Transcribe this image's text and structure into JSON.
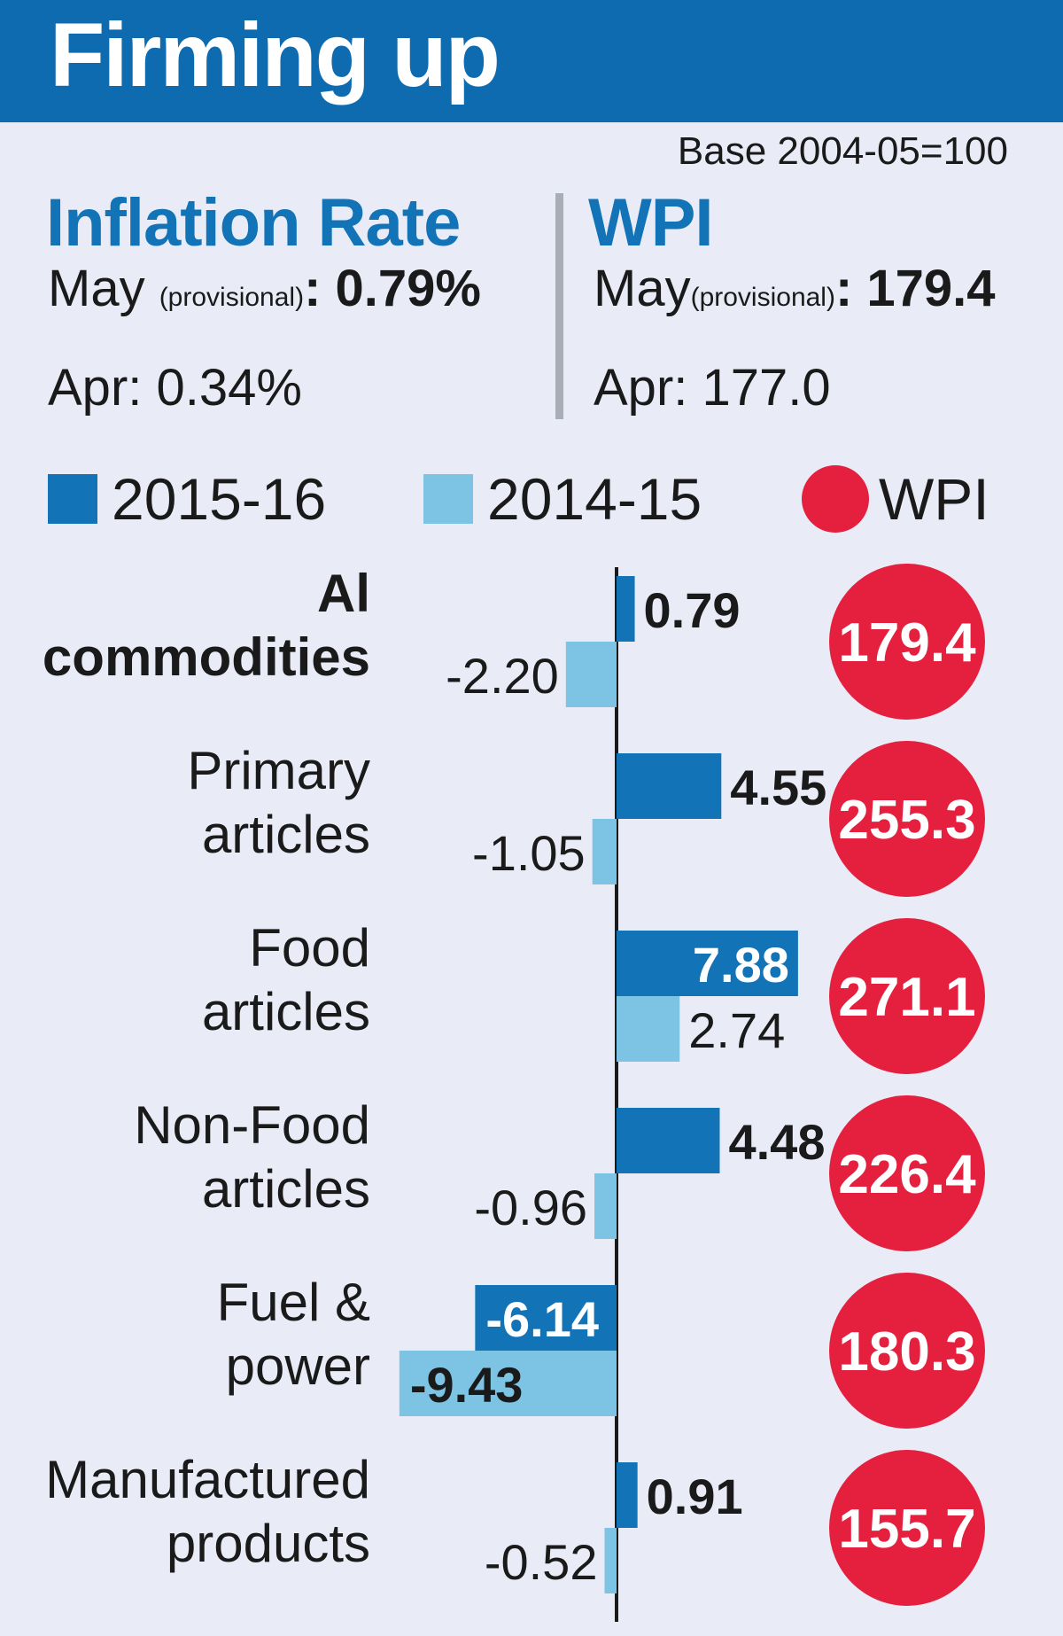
{
  "header": {
    "title": "Firming up"
  },
  "base_note": "Base 2004-05=100",
  "inflation": {
    "heading": "Inflation Rate",
    "may_label": "May ",
    "provisional": "(provisional)",
    "may_value": ": 0.79%",
    "apr_text": "Apr: 0.34%"
  },
  "wpi": {
    "heading": "WPI",
    "may_label": "May",
    "provisional": "(provisional)",
    "may_value": ": 179.4",
    "apr_text": "Apr: 177.0"
  },
  "legend": {
    "items": [
      {
        "label": "2015-16",
        "color": "#1273b7",
        "shape": "square"
      },
      {
        "label": "2014-15",
        "color": "#7dc3e4",
        "shape": "square"
      },
      {
        "label": "WPI",
        "color": "#e4203e",
        "shape": "circle"
      }
    ]
  },
  "colors": {
    "series_2015": "#1273b7",
    "series_2014": "#7dc3e4",
    "wpi": "#e4203e",
    "text": "#1a1a1a",
    "axis": "#1a1a1a"
  },
  "chart_data": {
    "type": "bar",
    "orientation": "horizontal",
    "categories": [
      [
        "Al",
        "commodities"
      ],
      [
        "Primary",
        "articles"
      ],
      [
        "Food",
        "articles"
      ],
      [
        "Non-Food",
        "articles"
      ],
      [
        "Fuel &",
        "power"
      ],
      [
        "Manufactured",
        "products"
      ]
    ],
    "bold_categories": [
      0
    ],
    "series": [
      {
        "name": "2015-16",
        "values": [
          0.79,
          4.55,
          7.88,
          4.48,
          -6.14,
          0.91
        ],
        "labels": [
          "0.79",
          "4.55",
          "7.88",
          "4.48",
          "-6.14",
          "0.91"
        ]
      },
      {
        "name": "2014-15",
        "values": [
          -2.2,
          -1.05,
          2.74,
          -0.96,
          -9.43,
          -0.52
        ],
        "labels": [
          "-2.20",
          "-1.05",
          "2.74",
          "-0.96",
          "-9.43",
          "-0.52"
        ]
      }
    ],
    "wpi": {
      "name": "WPI",
      "values": [
        179.4,
        255.3,
        271.1,
        226.4,
        180.3,
        155.7
      ],
      "labels": [
        "179.4",
        "255.3",
        "271.1",
        "226.4",
        "180.3",
        "155.7"
      ]
    }
  }
}
